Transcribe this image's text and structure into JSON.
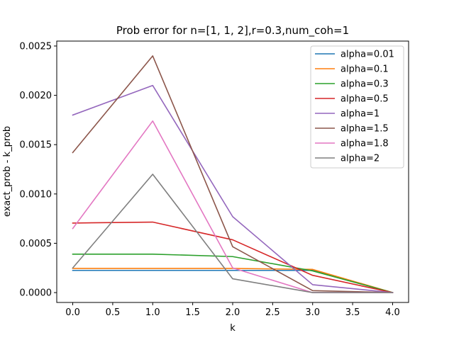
{
  "chart_data": {
    "type": "line",
    "title": "Prob error for n=[1, 1, 2],r=0.3,num_coh=1",
    "xlabel": "k",
    "ylabel": "exact_prob - k_prob",
    "xlim": [
      -0.2,
      4.2
    ],
    "ylim": [
      -0.0001,
      0.00255
    ],
    "x": [
      0,
      1,
      2,
      3,
      4
    ],
    "xticks": [
      "0.0",
      "0.5",
      "1.0",
      "1.5",
      "2.0",
      "2.5",
      "3.0",
      "3.5",
      "4.0"
    ],
    "yticks": [
      "0.0000",
      "0.0005",
      "0.0010",
      "0.0015",
      "0.0020",
      "0.0025"
    ],
    "grid": false,
    "legend_position": "top-right",
    "series": [
      {
        "name": "alpha=0.01",
        "color": "#1f77b4",
        "values": [
          0.000225,
          0.000225,
          0.000225,
          0.000225,
          0.0
        ]
      },
      {
        "name": "alpha=0.1",
        "color": "#ff7f0e",
        "values": [
          0.000245,
          0.000245,
          0.000245,
          0.000235,
          0.0
        ]
      },
      {
        "name": "alpha=0.3",
        "color": "#2ca02c",
        "values": [
          0.00039,
          0.00039,
          0.000365,
          0.00022,
          0.0
        ]
      },
      {
        "name": "alpha=0.5",
        "color": "#d62728",
        "values": [
          0.000705,
          0.000715,
          0.000535,
          0.000175,
          0.0
        ]
      },
      {
        "name": "alpha=1",
        "color": "#9467bd",
        "values": [
          0.0018,
          0.0021,
          0.00077,
          8e-05,
          0.0
        ]
      },
      {
        "name": "alpha=1.5",
        "color": "#8c564b",
        "values": [
          0.00142,
          0.0024,
          0.000465,
          2e-05,
          0.0
        ]
      },
      {
        "name": "alpha=1.8",
        "color": "#e377c2",
        "values": [
          0.00065,
          0.00174,
          0.00025,
          0.0,
          0.0
        ]
      },
      {
        "name": "alpha=2",
        "color": "#7f7f7f",
        "values": [
          0.00025,
          0.0012,
          0.00014,
          0.0,
          0.0
        ]
      }
    ]
  }
}
